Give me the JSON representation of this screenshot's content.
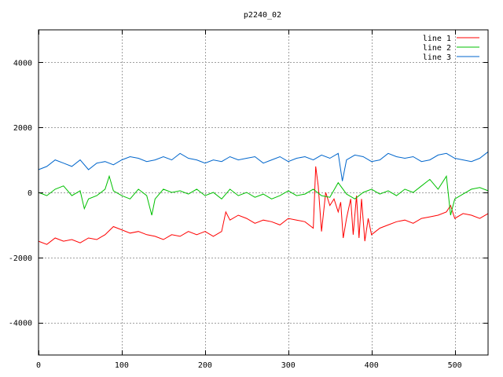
{
  "chart_data": {
    "type": "line",
    "title": "p2240_02",
    "xlabel": "",
    "ylabel": "",
    "xlim": [
      0,
      540
    ],
    "ylim": [
      -5000,
      5000
    ],
    "xticks": [
      0,
      100,
      200,
      300,
      400,
      500
    ],
    "yticks": [
      -4000,
      -2000,
      0,
      2000,
      4000
    ],
    "grid": true,
    "legend_position": "top-right",
    "series": [
      {
        "name": "line 1",
        "color": "#ff0000",
        "x": [
          0,
          10,
          20,
          30,
          40,
          50,
          60,
          70,
          80,
          90,
          100,
          110,
          120,
          130,
          140,
          150,
          160,
          170,
          180,
          190,
          200,
          210,
          220,
          225,
          230,
          240,
          250,
          260,
          270,
          280,
          290,
          300,
          310,
          320,
          330,
          333,
          336,
          340,
          345,
          350,
          355,
          360,
          363,
          366,
          370,
          375,
          378,
          382,
          385,
          388,
          392,
          396,
          400,
          410,
          420,
          430,
          440,
          450,
          460,
          470,
          480,
          490,
          495,
          500,
          510,
          520,
          530,
          540
        ],
        "y": [
          -1500,
          -1600,
          -1400,
          -1500,
          -1450,
          -1550,
          -1400,
          -1450,
          -1300,
          -1050,
          -1150,
          -1250,
          -1200,
          -1300,
          -1350,
          -1450,
          -1300,
          -1350,
          -1200,
          -1300,
          -1200,
          -1350,
          -1200,
          -600,
          -850,
          -700,
          -800,
          -950,
          -850,
          -900,
          -1000,
          -800,
          -850,
          -900,
          -1100,
          800,
          200,
          -1200,
          0,
          -400,
          -200,
          -600,
          -300,
          -1400,
          -800,
          -200,
          -1300,
          -100,
          -1400,
          -200,
          -1500,
          -800,
          -1300,
          -1100,
          -1000,
          -900,
          -850,
          -950,
          -800,
          -750,
          -700,
          -600,
          -400,
          -800,
          -650,
          -700,
          -800,
          -650
        ]
      },
      {
        "name": "line 2",
        "color": "#00c000",
        "x": [
          0,
          10,
          20,
          30,
          40,
          50,
          55,
          60,
          70,
          80,
          85,
          90,
          100,
          110,
          120,
          130,
          136,
          140,
          150,
          160,
          170,
          180,
          190,
          200,
          210,
          220,
          230,
          240,
          250,
          260,
          270,
          280,
          290,
          300,
          310,
          320,
          330,
          340,
          350,
          360,
          370,
          380,
          390,
          400,
          410,
          420,
          430,
          440,
          450,
          460,
          470,
          480,
          490,
          495,
          500,
          510,
          520,
          530,
          540
        ],
        "y": [
          0,
          -100,
          100,
          200,
          -100,
          50,
          -500,
          -200,
          -100,
          100,
          500,
          50,
          -100,
          -200,
          100,
          -100,
          -700,
          -200,
          100,
          0,
          50,
          -50,
          100,
          -100,
          0,
          -200,
          100,
          -100,
          0,
          -150,
          -50,
          -200,
          -100,
          50,
          -100,
          -50,
          100,
          -100,
          -150,
          300,
          -50,
          -200,
          0,
          100,
          -50,
          50,
          -100,
          100,
          0,
          200,
          400,
          100,
          500,
          -700,
          -200,
          -50,
          100,
          150,
          50
        ]
      },
      {
        "name": "line 3",
        "color": "#0066cc",
        "x": [
          0,
          10,
          20,
          30,
          40,
          50,
          60,
          70,
          80,
          90,
          100,
          110,
          120,
          130,
          140,
          150,
          160,
          170,
          180,
          190,
          200,
          210,
          220,
          230,
          240,
          250,
          260,
          270,
          280,
          290,
          300,
          310,
          320,
          330,
          340,
          350,
          360,
          365,
          370,
          380,
          390,
          400,
          410,
          420,
          430,
          440,
          450,
          460,
          470,
          480,
          490,
          500,
          510,
          520,
          530,
          540
        ],
        "y": [
          700,
          800,
          1000,
          900,
          800,
          1000,
          700,
          900,
          950,
          850,
          1000,
          1100,
          1050,
          950,
          1000,
          1100,
          1000,
          1200,
          1050,
          1000,
          900,
          1000,
          950,
          1100,
          1000,
          1050,
          1100,
          900,
          1000,
          1100,
          950,
          1050,
          1100,
          1000,
          1150,
          1050,
          1200,
          350,
          1000,
          1150,
          1100,
          950,
          1000,
          1200,
          1100,
          1050,
          1100,
          950,
          1000,
          1150,
          1200,
          1050,
          1000,
          950,
          1050,
          1250
        ]
      }
    ]
  }
}
